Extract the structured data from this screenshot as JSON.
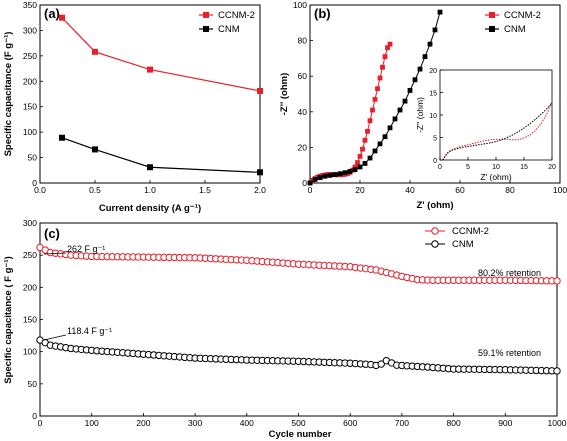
{
  "colors": {
    "ccnm": "#e8202a",
    "cnm": "#000000"
  },
  "chart_data": [
    {
      "type": "line",
      "panel_label": "(a)",
      "xlabel": "Current density (A g⁻¹)",
      "ylabel": "Specific capacitance (F g⁻¹)",
      "xlim": [
        0.0,
        2.0
      ],
      "ylim": [
        0,
        350
      ],
      "xticks": [
        "0.0",
        "0.5",
        "1.0",
        "1.5",
        "2.0"
      ],
      "yticks": [
        "0",
        "50",
        "100",
        "150",
        "200",
        "250",
        "300",
        "350"
      ],
      "legend_position": "top-right",
      "series": [
        {
          "name": "CCNM-2",
          "color_key": "ccnm",
          "marker": "square",
          "x": [
            0.2,
            0.5,
            1.0,
            2.0
          ],
          "y": [
            325,
            258,
            223,
            181
          ]
        },
        {
          "name": "CNM",
          "color_key": "cnm",
          "marker": "square",
          "x": [
            0.2,
            0.5,
            1.0,
            2.0
          ],
          "y": [
            89,
            66,
            31,
            21
          ]
        }
      ]
    },
    {
      "type": "line",
      "panel_label": "(b)",
      "xlabel": "Z' (ohm)",
      "ylabel": "-Z'' (ohm)",
      "xlim": [
        0,
        100
      ],
      "ylim": [
        0,
        100
      ],
      "xticks": [
        "0",
        "20",
        "40",
        "60",
        "80",
        "100"
      ],
      "yticks": [
        "0",
        "20",
        "40",
        "60",
        "80",
        "100"
      ],
      "legend_position": "top-right",
      "series": [
        {
          "name": "CCNM-2",
          "color_key": "ccnm",
          "marker": "square",
          "x": [
            0,
            1,
            2,
            3,
            4,
            5,
            6,
            7,
            8,
            9,
            10,
            11,
            12,
            13,
            14,
            15,
            16,
            17,
            18,
            19,
            20,
            21,
            22,
            23,
            24,
            25,
            26,
            27,
            28,
            29,
            30,
            31,
            32
          ],
          "y": [
            0,
            1.5,
            2.5,
            3.3,
            3.8,
            4.2,
            4.5,
            4.7,
            4.8,
            4.8,
            4.7,
            4.6,
            4.6,
            4.7,
            4.9,
            5.3,
            6,
            7.2,
            9,
            11.5,
            15,
            19,
            24,
            29,
            35,
            41,
            47,
            53,
            59,
            65,
            71,
            76,
            78
          ]
        },
        {
          "name": "CNM",
          "color_key": "cnm",
          "marker": "square",
          "x": [
            0,
            2,
            4,
            6,
            8,
            10,
            12,
            14,
            16,
            18,
            20,
            22,
            24,
            26,
            28,
            30,
            32,
            34,
            36,
            38,
            40,
            42,
            44,
            46,
            48,
            50,
            52
          ],
          "y": [
            0,
            2,
            3,
            3.8,
            4.3,
            4.7,
            5.2,
            5.8,
            6.5,
            7.5,
            9,
            11,
            14,
            18,
            22,
            26,
            31,
            36,
            41,
            46,
            52,
            58,
            64,
            71,
            78,
            86,
            96
          ]
        }
      ],
      "inset": {
        "xlabel": "Z' (ohm)",
        "ylabel": "-Z'' (ohm)",
        "xlim": [
          0,
          20
        ],
        "ylim": [
          0,
          20
        ],
        "xticks": [
          "0",
          "5",
          "10",
          "15",
          "20"
        ],
        "yticks": [
          "0",
          "5",
          "10",
          "15",
          "20"
        ],
        "series": [
          {
            "name": "CCNM-2",
            "color_key": "ccnm",
            "style": "dotted",
            "x": [
              0.5,
              1,
              1.5,
              2,
              3,
              4,
              5,
              6,
              7,
              8,
              9,
              10,
              11,
              12,
              13,
              14,
              15,
              16,
              17,
              18,
              19,
              20
            ],
            "y": [
              0,
              1.1,
              1.8,
              2.2,
              2.7,
              3.1,
              3.4,
              3.7,
              4.0,
              4.3,
              4.5,
              4.6,
              4.6,
              4.6,
              4.5,
              4.5,
              4.9,
              5.5,
              6.5,
              8,
              10,
              13
            ]
          },
          {
            "name": "CNM",
            "color_key": "cnm",
            "style": "dotted",
            "x": [
              0.5,
              1,
              1.5,
              2,
              3,
              4,
              5,
              6,
              7,
              8,
              9,
              10,
              11,
              12,
              13,
              14,
              15,
              16,
              17,
              18,
              19,
              20
            ],
            "y": [
              0,
              1.0,
              1.7,
              2.1,
              2.5,
              2.8,
              3.0,
              3.2,
              3.4,
              3.6,
              3.8,
              4.1,
              4.5,
              5.0,
              5.6,
              6.3,
              7.1,
              8.0,
              9.0,
              10.1,
              11.3,
              12.6
            ]
          }
        ]
      }
    },
    {
      "type": "line",
      "panel_label": "(c)",
      "xlabel": "Cycle number",
      "ylabel": "Specific capacitance (F g⁻¹)",
      "xlim": [
        0,
        1000
      ],
      "ylim": [
        0,
        300
      ],
      "xticks": [
        "0",
        "100",
        "200",
        "300",
        "400",
        "500",
        "600",
        "700",
        "800",
        "900",
        "1000"
      ],
      "yticks": [
        "0",
        "50",
        "100",
        "150",
        "200",
        "250",
        "300"
      ],
      "legend_position": "top-right",
      "annotations": [
        "262 F g⁻¹",
        "118.4 F g⁻¹",
        "80.2% retention",
        "59.1% retention"
      ],
      "series": [
        {
          "name": "CCNM-2",
          "color_key": "ccnm",
          "marker": "open-circle",
          "keypoints_x": [
            0,
            20,
            60,
            100,
            200,
            300,
            400,
            500,
            550,
            600,
            650,
            700,
            730,
            760,
            800,
            900,
            1000
          ],
          "keypoints_y": [
            262,
            254,
            250,
            248,
            247,
            246,
            242,
            236,
            234,
            232,
            227,
            217,
            212,
            211,
            211,
            211,
            210
          ]
        },
        {
          "name": "CNM",
          "color_key": "cnm",
          "marker": "open-circle",
          "keypoints_x": [
            0,
            20,
            60,
            100,
            200,
            300,
            400,
            500,
            600,
            640,
            655,
            670,
            690,
            750,
            800,
            900,
            1000
          ],
          "keypoints_y": [
            118,
            110,
            105,
            102,
            96,
            90,
            87,
            85,
            82,
            80,
            78,
            86,
            79,
            76,
            73,
            72,
            70
          ]
        }
      ]
    }
  ],
  "labels": {
    "a": {
      "panel": "(a)",
      "xlabel": "Current density (A g⁻¹)",
      "ylabel": "Specific capacitance (F g⁻¹)",
      "leg1": "CCNM-2",
      "leg2": "CNM"
    },
    "b": {
      "panel": "(b)",
      "xlabel": "Z' (ohm)",
      "ylabel": "-Z'' (ohm)",
      "leg1": "CCNM-2",
      "leg2": "CNM",
      "inset_x": "Z' (ohm)",
      "inset_y": "-Z'' (ohm)"
    },
    "c": {
      "panel": "(c)",
      "xlabel": "Cycle number",
      "ylabel": "Specific capacitance ( F g⁻¹)",
      "leg1": "CCNM-2",
      "leg2": "CNM",
      "ann1": "262 F g⁻¹",
      "ann2": "118.4 F g⁻¹",
      "ann3": "80.2% retention",
      "ann4": "59.1% retention"
    }
  }
}
